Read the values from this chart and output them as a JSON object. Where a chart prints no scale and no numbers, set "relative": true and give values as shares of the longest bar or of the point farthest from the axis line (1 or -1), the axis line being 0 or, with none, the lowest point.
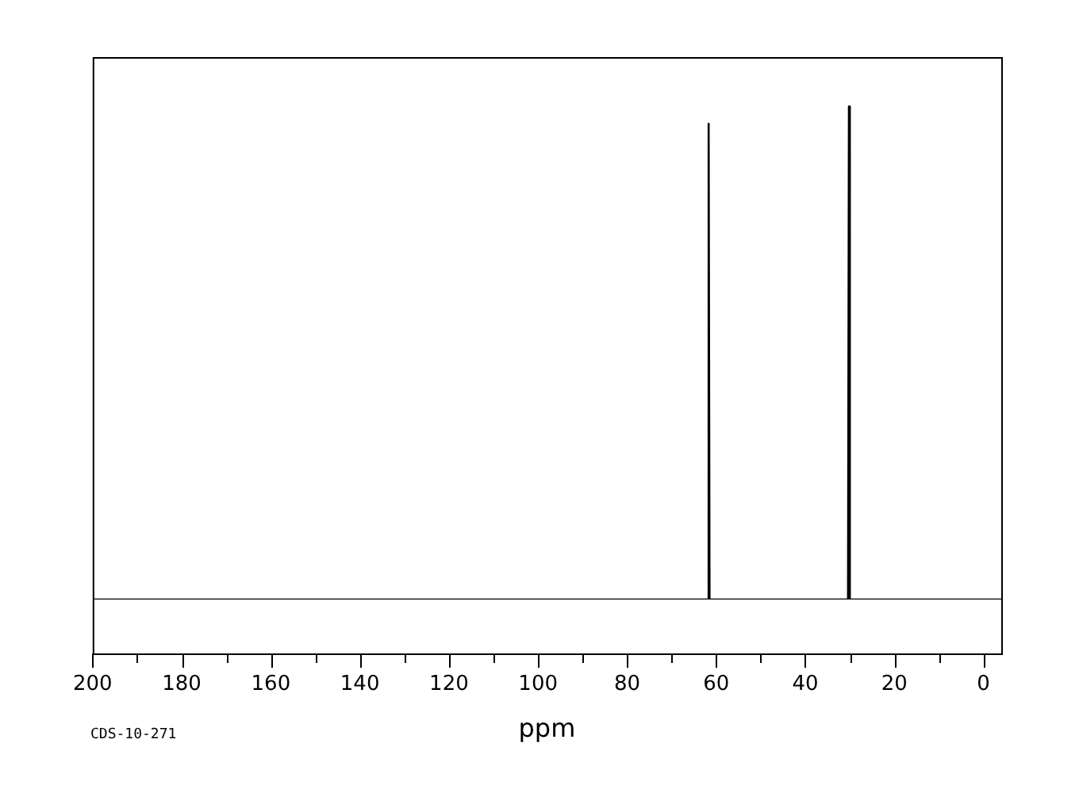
{
  "chart_data": {
    "type": "line",
    "relative": true,
    "xlabel": "ppm",
    "annotations": [
      "CDS-10-271"
    ],
    "x": [
      200,
      61.9,
      61.7,
      61.5,
      30.4,
      30.2,
      30.0,
      -4
    ],
    "series": [
      {
        "color": "#000000",
        "values": [
          0,
          0,
          0.965,
          0,
          0,
          1,
          0,
          0
        ]
      }
    ],
    "xlim": [
      200,
      -4
    ],
    "xticks": [
      200,
      180,
      160,
      140,
      120,
      100,
      80,
      60,
      40,
      20,
      0
    ],
    "grid": false,
    "legend": false,
    "marker": "none",
    "line_style": "solid"
  }
}
